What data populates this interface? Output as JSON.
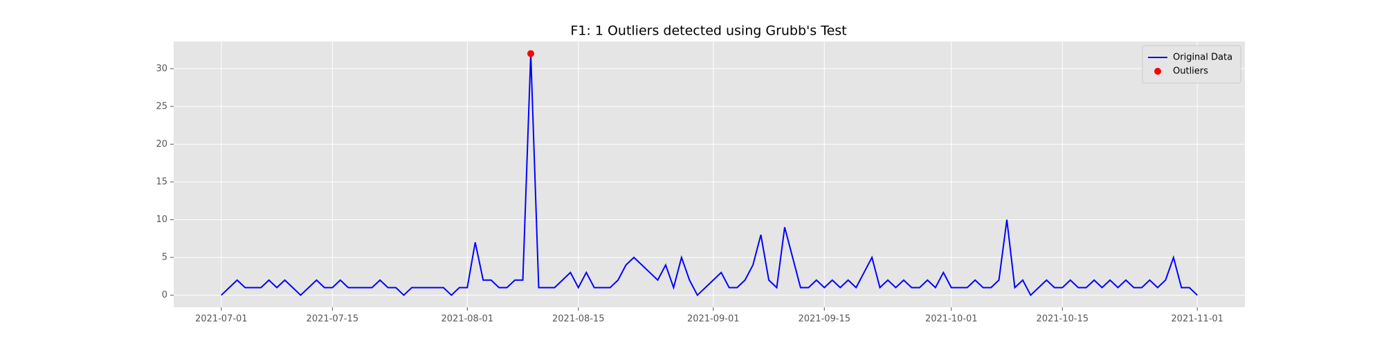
{
  "chart_data": {
    "type": "line",
    "title": "F1: 1 Outliers detected using Grubb's Test",
    "x": [
      "2021-07-01",
      "2021-07-02",
      "2021-07-03",
      "2021-07-04",
      "2021-07-05",
      "2021-07-06",
      "2021-07-07",
      "2021-07-08",
      "2021-07-09",
      "2021-07-10",
      "2021-07-11",
      "2021-07-12",
      "2021-07-13",
      "2021-07-14",
      "2021-07-15",
      "2021-07-16",
      "2021-07-17",
      "2021-07-18",
      "2021-07-19",
      "2021-07-20",
      "2021-07-21",
      "2021-07-22",
      "2021-07-23",
      "2021-07-24",
      "2021-07-25",
      "2021-07-26",
      "2021-07-27",
      "2021-07-28",
      "2021-07-29",
      "2021-07-30",
      "2021-07-31",
      "2021-08-01",
      "2021-08-02",
      "2021-08-03",
      "2021-08-04",
      "2021-08-05",
      "2021-08-06",
      "2021-08-07",
      "2021-08-08",
      "2021-08-09",
      "2021-08-10",
      "2021-08-11",
      "2021-08-12",
      "2021-08-13",
      "2021-08-14",
      "2021-08-15",
      "2021-08-16",
      "2021-08-17",
      "2021-08-18",
      "2021-08-19",
      "2021-08-20",
      "2021-08-21",
      "2021-08-22",
      "2021-08-23",
      "2021-08-24",
      "2021-08-25",
      "2021-08-26",
      "2021-08-27",
      "2021-08-28",
      "2021-08-29",
      "2021-08-30",
      "2021-08-31",
      "2021-09-01",
      "2021-09-02",
      "2021-09-03",
      "2021-09-04",
      "2021-09-05",
      "2021-09-06",
      "2021-09-07",
      "2021-09-08",
      "2021-09-09",
      "2021-09-10",
      "2021-09-11",
      "2021-09-12",
      "2021-09-13",
      "2021-09-14",
      "2021-09-15",
      "2021-09-16",
      "2021-09-17",
      "2021-09-18",
      "2021-09-19",
      "2021-09-20",
      "2021-09-21",
      "2021-09-22",
      "2021-09-23",
      "2021-09-24",
      "2021-09-25",
      "2021-09-26",
      "2021-09-27",
      "2021-09-28",
      "2021-09-29",
      "2021-09-30",
      "2021-10-01",
      "2021-10-02",
      "2021-10-03",
      "2021-10-04",
      "2021-10-05",
      "2021-10-06",
      "2021-10-07",
      "2021-10-08",
      "2021-10-09",
      "2021-10-10",
      "2021-10-11",
      "2021-10-12",
      "2021-10-13",
      "2021-10-14",
      "2021-10-15",
      "2021-10-16",
      "2021-10-17",
      "2021-10-18",
      "2021-10-19",
      "2021-10-20",
      "2021-10-21",
      "2021-10-22",
      "2021-10-23",
      "2021-10-24",
      "2021-10-25",
      "2021-10-26",
      "2021-10-27",
      "2021-10-28",
      "2021-10-29",
      "2021-10-30",
      "2021-10-31",
      "2021-11-01"
    ],
    "series": [
      {
        "name": "Original Data",
        "color": "#0000ff",
        "type": "line",
        "values": [
          0,
          1,
          2,
          1,
          1,
          1,
          2,
          1,
          2,
          1,
          0,
          1,
          2,
          1,
          1,
          2,
          1,
          1,
          1,
          1,
          2,
          1,
          1,
          0,
          1,
          1,
          1,
          1,
          1,
          0,
          1,
          1,
          7,
          2,
          2,
          1,
          1,
          2,
          2,
          32,
          1,
          1,
          1,
          2,
          3,
          1,
          3,
          1,
          1,
          1,
          2,
          4,
          5,
          4,
          3,
          2,
          4,
          1,
          5,
          2,
          0,
          1,
          2,
          3,
          1,
          1,
          2,
          4,
          8,
          2,
          1,
          9,
          5,
          1,
          1,
          2,
          1,
          2,
          1,
          2,
          1,
          3,
          5,
          1,
          2,
          1,
          2,
          1,
          1,
          2,
          1,
          3,
          1,
          1,
          1,
          2,
          1,
          1,
          2,
          10,
          1,
          2,
          0,
          1,
          2,
          1,
          1,
          2,
          1,
          1,
          2,
          1,
          2,
          1,
          2,
          1,
          1,
          2,
          1,
          2,
          5,
          1,
          1,
          0
        ]
      },
      {
        "name": "Outliers",
        "color": "#ff0000",
        "type": "scatter",
        "x": [
          "2021-08-09"
        ],
        "values": [
          32
        ]
      }
    ],
    "xlim": [
      "2021-06-25",
      "2021-11-07"
    ],
    "xticks": [
      "2021-07-01",
      "2021-07-15",
      "2021-08-01",
      "2021-08-15",
      "2021-09-01",
      "2021-09-15",
      "2021-10-01",
      "2021-10-15",
      "2021-11-01"
    ],
    "ylim": [
      -1.6,
      33.6
    ],
    "yticks": [
      0,
      5,
      10,
      15,
      20,
      25,
      30
    ],
    "grid": true,
    "legend": "upper right",
    "background": "#e5e5e5"
  }
}
